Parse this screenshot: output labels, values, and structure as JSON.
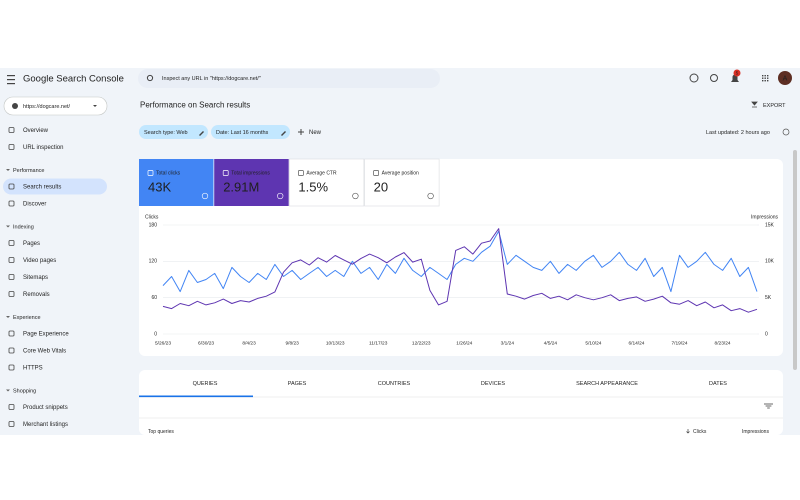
{
  "header": {
    "product": "Google Search Console",
    "search_placeholder": "Inspect any URL in \"https://dogcare.net/\"",
    "notifications": "5",
    "avatar": "A"
  },
  "sidebar": {
    "property": "https://dogcare.net/",
    "top_items": [
      "Overview",
      "URL inspection"
    ],
    "sections": [
      {
        "title": "Performance",
        "items": [
          "Search results",
          "Discover"
        ]
      },
      {
        "title": "Indexing",
        "items": [
          "Pages",
          "Video pages",
          "Sitemaps",
          "Removals"
        ]
      },
      {
        "title": "Experience",
        "items": [
          "Page Experience",
          "Core Web Vitals",
          "HTTPS"
        ]
      },
      {
        "title": "Shopping",
        "items": [
          "Product snippets",
          "Merchant listings"
        ]
      }
    ]
  },
  "main": {
    "title": "Performance on Search results",
    "export": "EXPORT",
    "filters": [
      "Search type: Web",
      "Date: Last 16 months"
    ],
    "new": "New",
    "last_updated": "Last updated: 2 hours ago",
    "metrics": [
      {
        "label": "Total clicks",
        "value": "43K",
        "color": "#4285f4"
      },
      {
        "label": "Total impressions",
        "value": "2.91M",
        "color": "#5e35b1"
      },
      {
        "label": "Average CTR",
        "value": "1.5%"
      },
      {
        "label": "Average position",
        "value": "20"
      }
    ],
    "tabs": [
      "QUERIES",
      "PAGES",
      "COUNTRIES",
      "DEVICES",
      "SEARCH APPEARANCE",
      "DATES"
    ],
    "table": {
      "title": "Top queries",
      "columns": [
        "Clicks",
        "Impressions"
      ]
    }
  },
  "chart_data": {
    "type": "line",
    "y_label": "Clicks",
    "y2_label": "Impressions",
    "categories": [
      "5/26/23",
      null,
      null,
      null,
      null,
      "6/30/23",
      null,
      null,
      null,
      null,
      "8/4/23",
      null,
      null,
      null,
      null,
      "9/8/23",
      null,
      null,
      null,
      null,
      "10/13/23",
      null,
      null,
      null,
      null,
      "11/17/23",
      null,
      null,
      null,
      null,
      "12/22/23",
      null,
      null,
      null,
      null,
      "1/26/24",
      null,
      null,
      null,
      null,
      "3/1/24",
      null,
      null,
      null,
      null,
      "4/5/24",
      null,
      null,
      null,
      null,
      "5/10/24",
      null,
      null,
      null,
      null,
      "6/14/24",
      null,
      null,
      null,
      null,
      "7/19/24",
      null,
      null,
      null,
      null,
      "8/23/24",
      null,
      null,
      null,
      null
    ],
    "series": [
      {
        "name": "Clicks",
        "color": "#4285f4",
        "values": [
          80,
          95,
          70,
          105,
          85,
          90,
          100,
          75,
          110,
          95,
          85,
          100,
          90,
          115,
          95,
          105,
          90,
          100,
          110,
          95,
          105,
          95,
          120,
          100,
          110,
          90,
          115,
          100,
          125,
          105,
          95,
          110,
          100,
          90,
          115,
          125,
          120,
          135,
          145,
          170,
          115,
          130,
          120,
          110,
          105,
          120,
          100,
          115,
          105,
          120,
          130,
          110,
          120,
          135,
          115,
          105,
          125,
          95,
          110,
          70,
          130,
          110,
          120,
          135,
          115,
          105,
          125,
          95,
          110,
          70
        ]
      },
      {
        "name": "Impressions",
        "color": "#5e35b1",
        "axis": "y2",
        "values": [
          3800,
          3500,
          4200,
          3900,
          4500,
          4000,
          4300,
          4800,
          4200,
          4600,
          4400,
          4900,
          5200,
          5800,
          8500,
          9800,
          10200,
          9500,
          10500,
          9900,
          10800,
          10200,
          9600,
          10400,
          11000,
          10500,
          9800,
          10600,
          11200,
          9900,
          10300,
          6000,
          4000,
          4500,
          11500,
          12000,
          11000,
          12500,
          12800,
          14500,
          5500,
          5200,
          4800,
          5300,
          5600,
          4900,
          5200,
          4700,
          5400,
          5000,
          4700,
          5000,
          5400,
          4600,
          4900,
          5100,
          4500,
          4800,
          5200,
          4300,
          4100,
          4600,
          3900,
          4400,
          3600,
          4000,
          3200,
          3500,
          3000,
          3400
        ]
      }
    ],
    "ylim": [
      0,
      180
    ],
    "yticks": [
      0,
      60,
      120,
      180
    ],
    "y2lim": [
      0,
      15000
    ],
    "y2ticks": [
      0,
      {
        "value": 5000,
        "label": "5K"
      },
      {
        "value": 10000,
        "label": "10K"
      },
      {
        "value": 15000,
        "label": "15K"
      }
    ],
    "grid": true
  }
}
